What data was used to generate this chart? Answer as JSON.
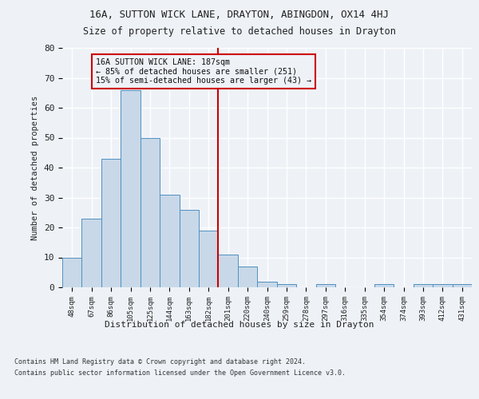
{
  "title1": "16A, SUTTON WICK LANE, DRAYTON, ABINGDON, OX14 4HJ",
  "title2": "Size of property relative to detached houses in Drayton",
  "xlabel": "Distribution of detached houses by size in Drayton",
  "ylabel": "Number of detached properties",
  "categories": [
    "48sqm",
    "67sqm",
    "86sqm",
    "105sqm",
    "125sqm",
    "144sqm",
    "163sqm",
    "182sqm",
    "201sqm",
    "220sqm",
    "240sqm",
    "259sqm",
    "278sqm",
    "297sqm",
    "316sqm",
    "335sqm",
    "354sqm",
    "374sqm",
    "393sqm",
    "412sqm",
    "431sqm"
  ],
  "values": [
    10,
    23,
    43,
    66,
    50,
    31,
    26,
    19,
    11,
    7,
    2,
    1,
    0,
    1,
    0,
    0,
    1,
    0,
    1,
    1,
    1
  ],
  "bar_color": "#c8d8e8",
  "bar_edge_color": "#5090c0",
  "vline_x_idx": 7.5,
  "vline_color": "#cc0000",
  "annotation_text": "16A SUTTON WICK LANE: 187sqm\n← 85% of detached houses are smaller (251)\n15% of semi-detached houses are larger (43) →",
  "background_color": "#eef2f7",
  "grid_color": "#ffffff",
  "ylim": [
    0,
    80
  ],
  "yticks": [
    0,
    10,
    20,
    30,
    40,
    50,
    60,
    70,
    80
  ],
  "footer1": "Contains HM Land Registry data © Crown copyright and database right 2024.",
  "footer2": "Contains public sector information licensed under the Open Government Licence v3.0."
}
